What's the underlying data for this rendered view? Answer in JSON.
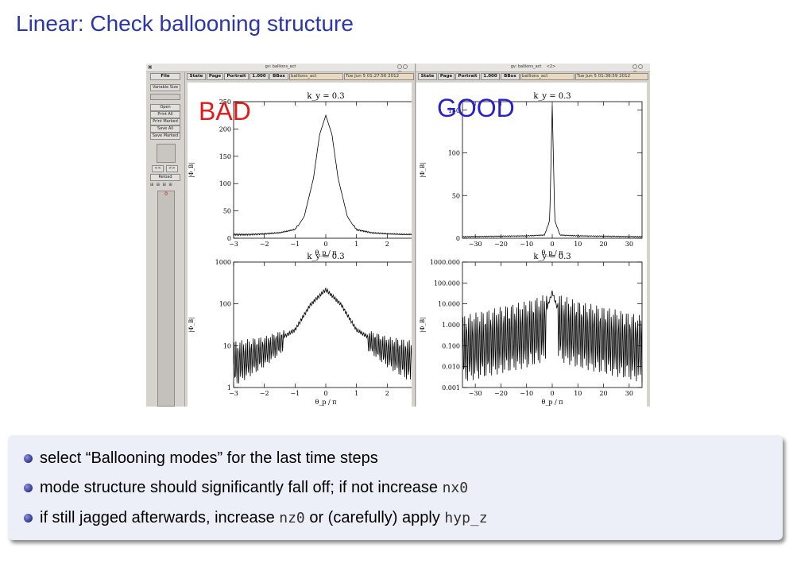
{
  "slide": {
    "title": "Linear: Check ballooning structure",
    "bullets": [
      {
        "text": "select “Ballooning modes” for the last time steps"
      },
      {
        "pre": "mode structure should significantly fall off; if not increase ",
        "code": "nx0"
      },
      {
        "pre": "if still jagged afterwards, increase ",
        "code1": "nz0",
        "mid": " or (carefully) apply ",
        "code2": "hyp_z"
      }
    ]
  },
  "left_window": {
    "title": "gv: ballions_act",
    "menu": {
      "file": "File",
      "state": "State",
      "page": "Page",
      "portrait": "Portrait",
      "zoom": "1.000",
      "bbox": "BBox",
      "filename": "ballions_act",
      "date": "Tue Jun  5 01:27:56 2012"
    },
    "sidebar": {
      "variable_size": "Variable Size",
      "open": "Open",
      "print_all": "Print All",
      "print_marked": "Print Marked",
      "save_all": "Save All",
      "save_marked": "Save Marked",
      "prev": "<<",
      "next": ">>",
      "reload": "Reload",
      "page_label": "0"
    },
    "overlay_label": "BAD"
  },
  "right_window": {
    "title": "gv: ballions_act",
    "title_extra": "<2>",
    "menu": {
      "state": "State",
      "page": "Page",
      "portrait": "Portrait",
      "zoom": "1.000",
      "bbox": "BBox",
      "filename": "ballions_act",
      "date": "Tue Jun  5 01:38:59 2012"
    },
    "overlay_label": "GOOD"
  },
  "colors": {
    "title": "#2b36a8",
    "bad": "#e31a1a",
    "good": "#2a1fc8"
  },
  "plot_text": {
    "ky_title": "k_y = 0.3",
    "xlabel": "θ_p / π",
    "ylabel": "|Φ_B|"
  },
  "chart_data": [
    {
      "type": "line",
      "panel": "bad-linear",
      "title": "k_y = 0.3",
      "xlabel": "θ_p / π",
      "ylabel": "|Φ_B|",
      "xlim": [
        -3,
        3
      ],
      "ylim": [
        0,
        250
      ],
      "xticks": [
        -3,
        -2,
        -1,
        0,
        1,
        2
      ],
      "yticks": [
        0,
        50,
        100,
        150,
        200,
        250
      ],
      "series": [
        {
          "x": [
            -3,
            -2.5,
            -2,
            -1.5,
            -1,
            -0.7,
            -0.4,
            -0.2,
            0,
            0.2,
            0.4,
            0.7,
            1,
            1.5,
            2,
            2.5,
            3
          ],
          "values": [
            5,
            5,
            6,
            8,
            14,
            40,
            110,
            190,
            225,
            190,
            110,
            40,
            14,
            8,
            6,
            5,
            5
          ]
        }
      ]
    },
    {
      "type": "line",
      "panel": "good-linear",
      "title": "k_y = 0.3",
      "xlabel": "θ_p / π",
      "ylabel": "|Φ_B|",
      "xlim": [
        -35,
        35
      ],
      "ylim": [
        0,
        160
      ],
      "xticks": [
        -30,
        -20,
        -10,
        0,
        10,
        20,
        30
      ],
      "yticks": [
        0,
        50,
        100,
        150
      ],
      "series": [
        {
          "x": [
            -35,
            -10,
            -3,
            -1,
            0,
            1,
            3,
            10,
            35
          ],
          "values": [
            1,
            2,
            3,
            20,
            155,
            20,
            3,
            2,
            1
          ]
        }
      ]
    },
    {
      "type": "line",
      "panel": "bad-log",
      "title": "k_y = 0.3",
      "xlabel": "θ_p / π",
      "ylabel": "|Φ_B|",
      "xlim": [
        -3,
        3
      ],
      "ylim": [
        1,
        1000
      ],
      "yscale": "log",
      "xticks": [
        -3,
        -2,
        -1,
        0,
        1,
        2
      ],
      "yticks": [
        1,
        10,
        100,
        1000
      ],
      "series": [
        {
          "x": [
            -3,
            -2,
            -1.5,
            -1,
            -0.5,
            0,
            0.5,
            1,
            1.5,
            2,
            3
          ],
          "values": [
            6,
            10,
            15,
            25,
            100,
            230,
            100,
            25,
            15,
            10,
            6
          ]
        }
      ]
    },
    {
      "type": "line",
      "panel": "good-log",
      "title": "k_y = 0.3",
      "xlabel": "θ_p / π",
      "ylabel": "|Φ_B|",
      "xlim": [
        -35,
        35
      ],
      "ylim": [
        0.001,
        1000
      ],
      "yscale": "log",
      "xticks": [
        -30,
        -20,
        -10,
        0,
        10,
        20,
        30
      ],
      "yticks": [
        "0.001",
        "0.010",
        "0.100",
        "1.000",
        "10.000",
        "100.000",
        "1000.000"
      ],
      "series": [
        {
          "x": [
            -35,
            -20,
            -10,
            -3,
            0,
            3,
            10,
            20,
            35
          ],
          "values": [
            0.3,
            0.8,
            1.5,
            3,
            40,
            3,
            1.5,
            0.8,
            0.3
          ]
        }
      ]
    }
  ]
}
